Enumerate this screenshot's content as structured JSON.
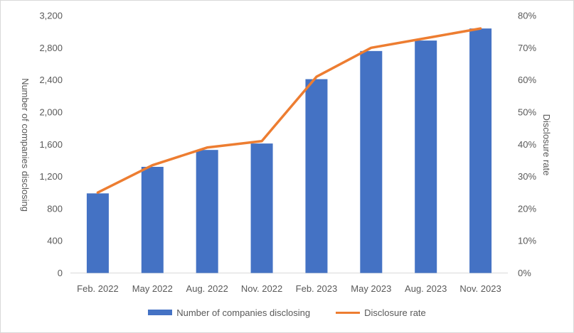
{
  "chart_data": {
    "type": "bar",
    "categories": [
      "Feb. 2022",
      "May 2022",
      "Aug. 2022",
      "Nov. 2022",
      "Feb. 2023",
      "May 2023",
      "Aug. 2023",
      "Nov. 2023"
    ],
    "series": [
      {
        "name": "Number of companies disclosing",
        "type": "bar",
        "axis": "left",
        "color": "#4472C4",
        "values": [
          990,
          1320,
          1530,
          1610,
          2410,
          2760,
          2890,
          3040
        ]
      },
      {
        "name": "Disclosure rate",
        "type": "line",
        "axis": "right",
        "color": "#ED7D31",
        "values": [
          25,
          33.5,
          39,
          41,
          61,
          70,
          73,
          76
        ]
      }
    ],
    "ylabel": "Number of companies disclosing",
    "y2label": "Disclosure rate",
    "ylim": [
      0,
      3200
    ],
    "y2lim": [
      0,
      80
    ],
    "yticks": [
      "0",
      "400",
      "800",
      "1,200",
      "1,600",
      "2,000",
      "2,400",
      "2,800",
      "3,200"
    ],
    "y2ticks": [
      "0%",
      "10%",
      "20%",
      "30%",
      "40%",
      "50%",
      "60%",
      "70%",
      "80%"
    ],
    "grid": false,
    "legend": "bottom"
  }
}
